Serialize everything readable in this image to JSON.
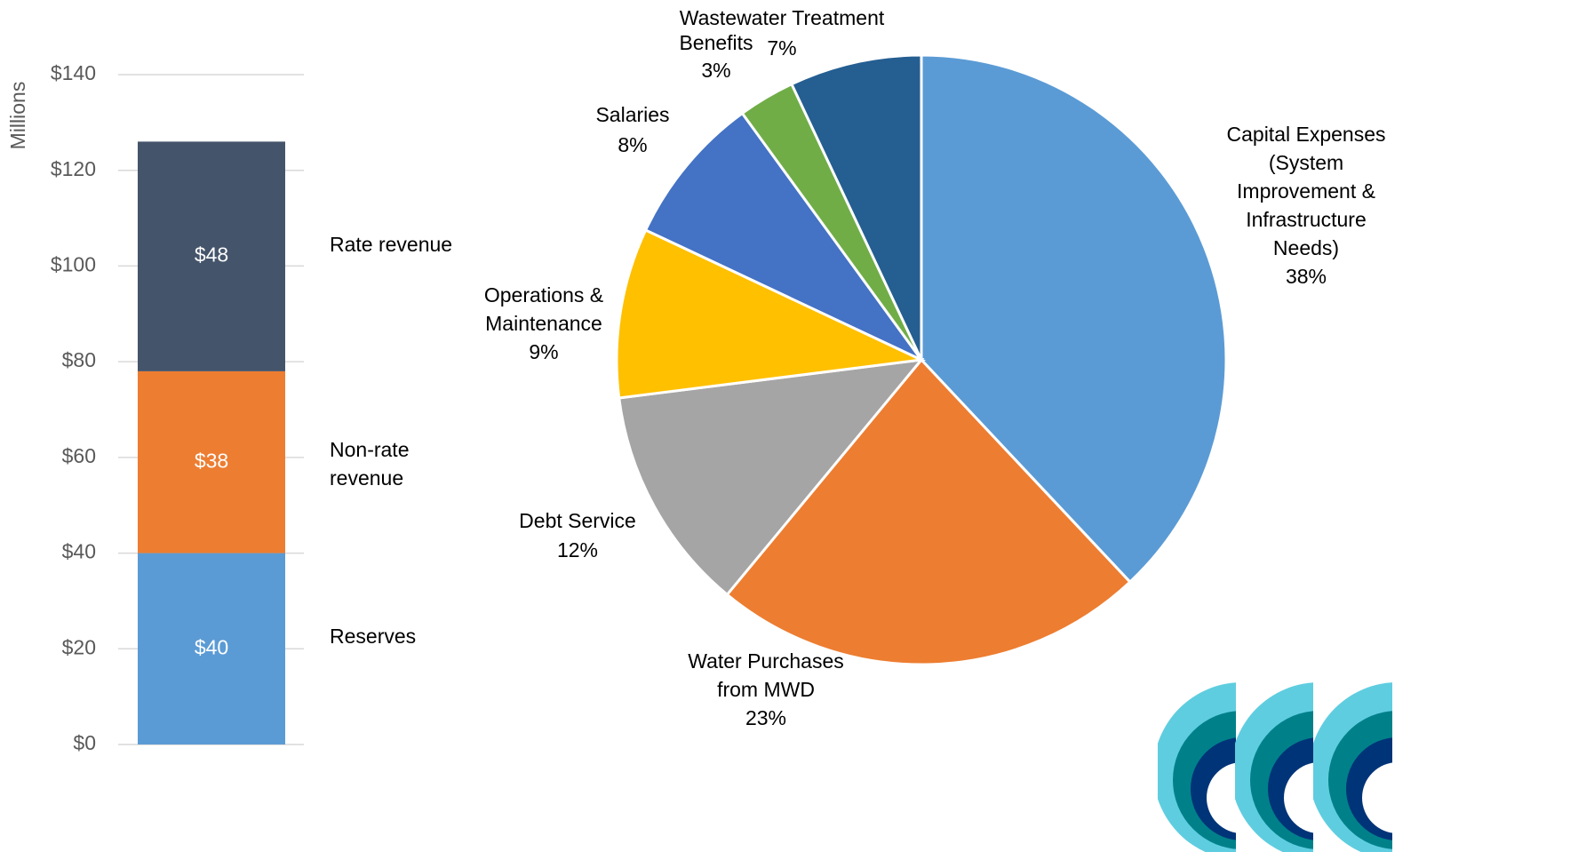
{
  "chart_data": [
    {
      "type": "bar",
      "y_label": "Millions",
      "categories": [
        null
      ],
      "series": [
        {
          "name": "Reserves",
          "color": "#5b9bd5",
          "values": [
            40
          ],
          "value_labels": [
            "$40"
          ]
        },
        {
          "name": "Non-rate revenue",
          "color": "#ed7d31",
          "values": [
            38
          ],
          "value_labels": [
            "$38"
          ]
        },
        {
          "name": "Rate revenue",
          "color": "#44546a",
          "values": [
            48
          ],
          "value_labels": [
            "$48"
          ]
        }
      ],
      "stacked": true,
      "ylim": [
        0,
        140
      ],
      "yticks": [
        {
          "value": 0,
          "label": "$0"
        },
        {
          "value": 20,
          "label": "$20"
        },
        {
          "value": 40,
          "label": "$40"
        },
        {
          "value": 60,
          "label": "$60"
        },
        {
          "value": 80,
          "label": "$80"
        },
        {
          "value": 100,
          "label": "$100"
        },
        {
          "value": 120,
          "label": "$120"
        },
        {
          "value": 140,
          "label": "$140"
        }
      ],
      "grid": true
    },
    {
      "type": "pie",
      "categories": [
        "Capital Expenses (System Improvement & Infrastructure Needs)",
        "Water Purchases from MWD",
        "Debt Service",
        "Operations & Maintenance",
        "Salaries",
        "Benefits",
        "Wastewater Treatment"
      ],
      "values": [
        38,
        23,
        12,
        9,
        8,
        3,
        7
      ],
      "value_labels": [
        "38%",
        "23%",
        "12%",
        "9%",
        "8%",
        "3%",
        "7%"
      ],
      "colors": [
        "#5b9bd5",
        "#ed7d31",
        "#a5a5a5",
        "#ffc000",
        "#4472c4",
        "#70ad47",
        "#255e91"
      ]
    }
  ]
}
